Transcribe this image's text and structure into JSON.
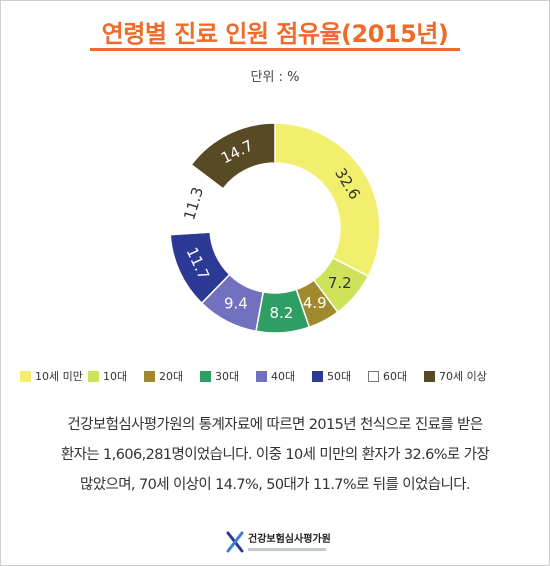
{
  "header": {
    "title": "연령별 진료 인원 점유율(2015년)",
    "unit": "단위 : %"
  },
  "chart_data": {
    "type": "pie",
    "title": "연령별 진료 인원 점유율(2015년)",
    "unit": "%",
    "donut": true,
    "categories": [
      "10세 미만",
      "10대",
      "20대",
      "30대",
      "40대",
      "50대",
      "60대",
      "70세 이상"
    ],
    "values": [
      32.6,
      7.2,
      4.9,
      8.2,
      9.4,
      11.7,
      11.3,
      14.7
    ],
    "value_labels": [
      "32.6",
      "7.2",
      "4.9",
      "8.2",
      "9.4",
      "11.7",
      "11.3",
      "14.7"
    ],
    "colors": [
      "#f3ef6e",
      "#cfe35a",
      "#a18a2e",
      "#2f9e64",
      "#7270bf",
      "#2d3a95",
      "#ffffff",
      "#574a25"
    ],
    "label_colors": [
      "#333333",
      "#333333",
      "#ffffff",
      "#ffffff",
      "#ffffff",
      "#ffffff",
      "#333333",
      "#ffffff"
    ],
    "legend_position": "bottom",
    "grid": false
  },
  "description": {
    "lines": [
      "건강보험심사평가원의 통계자료에 따르면 2015년 천식으로 진료를 받은",
      "환자는 1,606,281명이었습니다. 이중 10세 미만의 환자가 32.6%로 가장",
      "많았으며, 70세 이상이 14.7%, 50대가 11.7%로 뒤를 이었습니다."
    ]
  },
  "footer": {
    "logo_text": "건강보험심사평가원"
  }
}
